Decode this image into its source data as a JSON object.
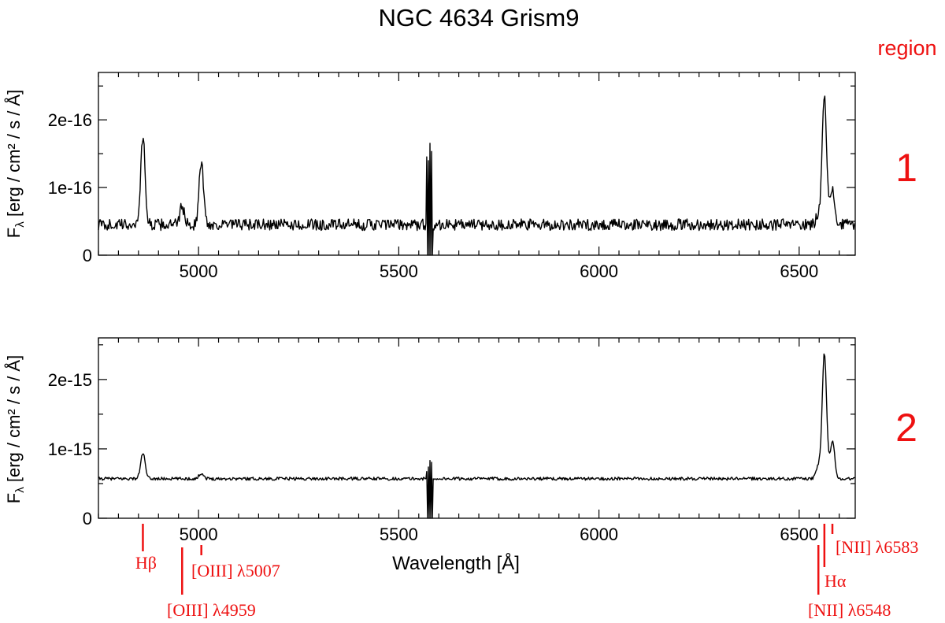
{
  "title": "NGC 4634 Grism9",
  "region_header": "region",
  "colors": {
    "line": "#000000",
    "annotation": "#ee1111",
    "axis": "#000000"
  },
  "x_axis": {
    "label": "Wavelength [Å]",
    "range": [
      4750,
      6640
    ],
    "ticks": [
      5000,
      5500,
      6000,
      6500
    ],
    "tick_labels": [
      "5000",
      "5500",
      "6000",
      "6500"
    ]
  },
  "chart_data": [
    {
      "type": "line",
      "region_label": "1",
      "ylabel_main": "F",
      "ylabel_sub": "λ",
      "ylabel_rest": " [erg / cm² / s / Å]",
      "ylim": [
        0,
        2.7e-16
      ],
      "yticks": [
        0,
        1e-16,
        2e-16
      ],
      "ytick_labels": [
        "0",
        "1e-16",
        "2e-16"
      ],
      "continuum": 4.5e-17,
      "noise": 8.5e-18,
      "emission_lines": [
        {
          "wavelength": 4861,
          "peak": 1.75e-16
        },
        {
          "wavelength": 5007,
          "peak": 1.38e-16
        },
        {
          "wavelength": 4959,
          "peak": 7.2e-17
        },
        {
          "wavelength": 6548,
          "peak": 6.2e-17
        },
        {
          "wavelength": 6563,
          "peak": 2.38e-16
        },
        {
          "wavelength": 6583,
          "peak": 9.6e-17
        }
      ],
      "sky_residual": {
        "wavelength": 5577,
        "max": 1.75e-16,
        "min": 0.0
      }
    },
    {
      "type": "line",
      "region_label": "2",
      "ylabel_main": "F",
      "ylabel_sub": "λ",
      "ylabel_rest": " [erg / cm² / s / Å]",
      "ylim": [
        0,
        2.6e-15
      ],
      "yticks": [
        0,
        1e-15,
        2e-15
      ],
      "ytick_labels": [
        "0",
        "1e-15",
        "2e-15"
      ],
      "continuum": 5.7e-16,
      "noise": 2.2e-17,
      "emission_lines": [
        {
          "wavelength": 4861,
          "peak": 9.4e-16
        },
        {
          "wavelength": 5007,
          "peak": 6.5e-16
        },
        {
          "wavelength": 6548,
          "peak": 7.5e-16
        },
        {
          "wavelength": 6563,
          "peak": 2.37e-15
        },
        {
          "wavelength": 6583,
          "peak": 1.12e-15
        }
      ],
      "sky_residual": {
        "wavelength": 5577,
        "max": 9e-16,
        "min": 0.0
      }
    }
  ],
  "line_ids": [
    {
      "label_main": "H",
      "label_greek": "β",
      "label_rest": "",
      "wavelength": 4861
    },
    {
      "label_main": "[OIII] ",
      "label_greek": "λ",
      "label_rest": "5007",
      "wavelength": 5007
    },
    {
      "label_main": "[OIII] ",
      "label_greek": "λ",
      "label_rest": "4959",
      "wavelength": 4959
    },
    {
      "label_main": "[NII] ",
      "label_greek": "λ",
      "label_rest": "6583",
      "wavelength": 6583
    },
    {
      "label_main": "H",
      "label_greek": "α",
      "label_rest": "",
      "wavelength": 6563
    },
    {
      "label_main": "[NII] ",
      "label_greek": "λ",
      "label_rest": "6548",
      "wavelength": 6548
    }
  ]
}
